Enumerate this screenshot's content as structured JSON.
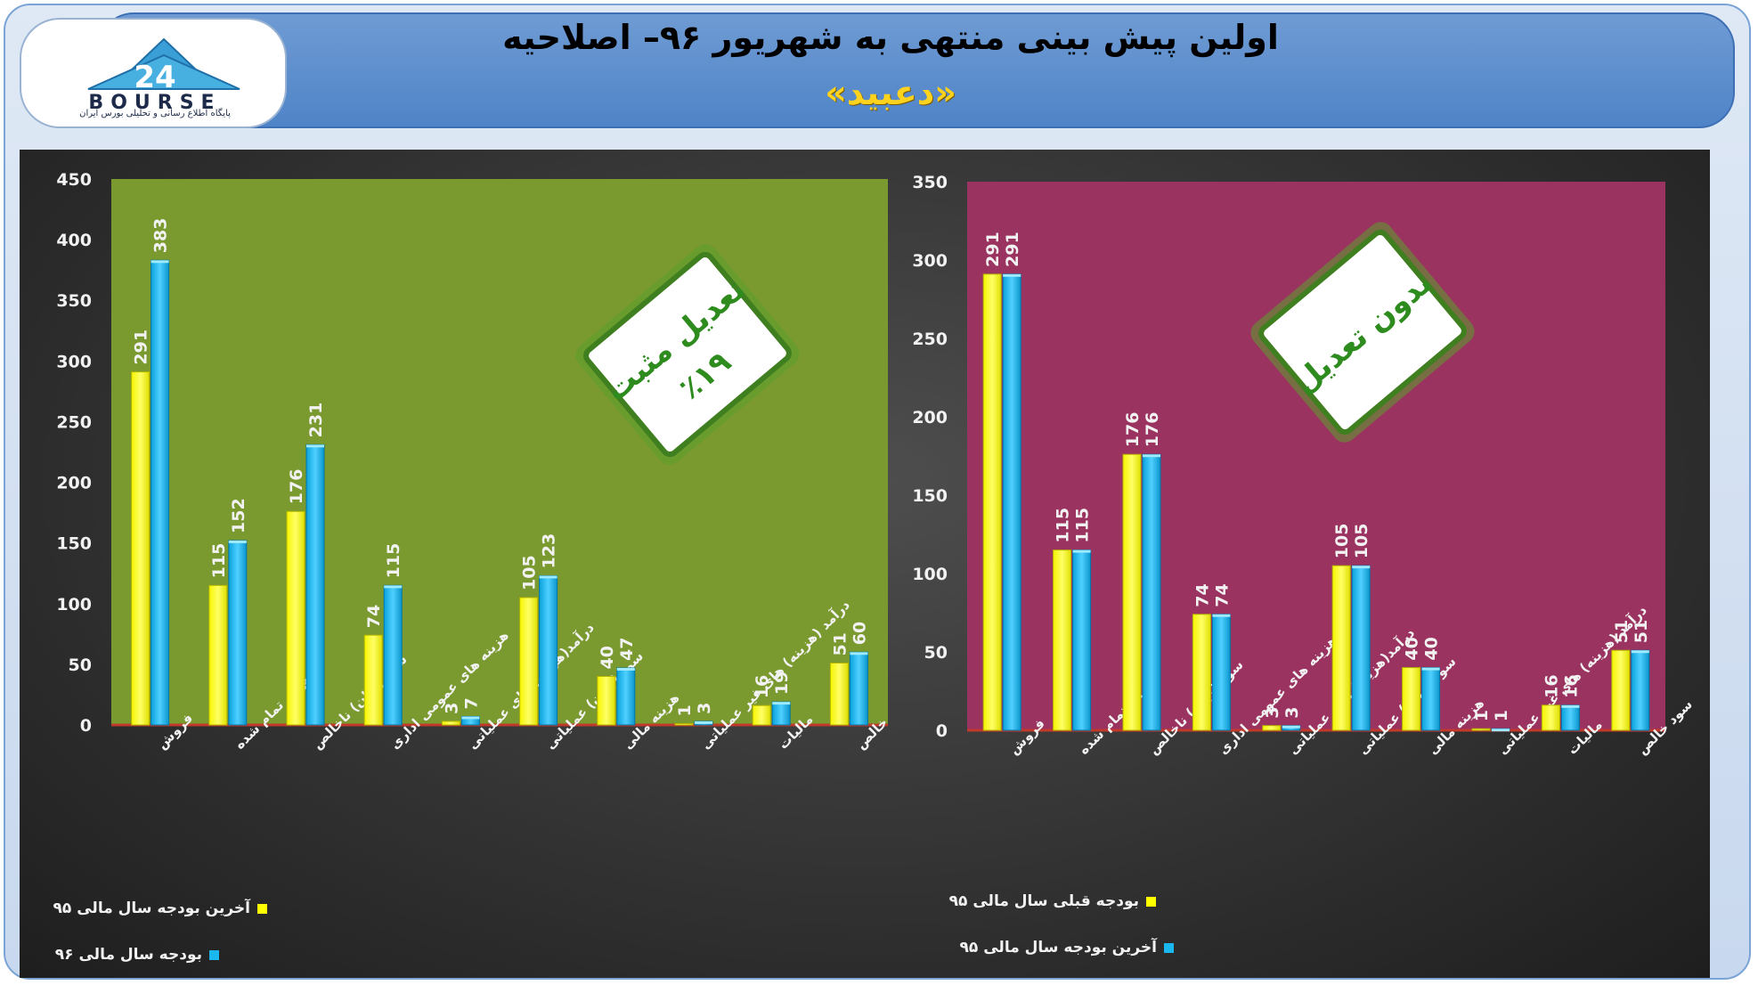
{
  "header": {
    "title": "اولین پیش بینی منتهی به شهریور ۹۶– اصلاحیه",
    "subtitle": "«دعبید»",
    "logo_text": "BOURSE",
    "logo_number": "24",
    "logo_subtitle": "پایگاه اطلاع رسانی و تحلیلی بورس ایران"
  },
  "chart_data": [
    {
      "type": "bar",
      "position": "left",
      "background": "#7a9a30",
      "categories": [
        "فروش",
        "بهای تمام شده",
        "سود (زیان) ناخالص",
        "هزینه های عمومی اداری",
        "درآمد(هزینه) های عملیاتی",
        "سود (زیان) عملیاتی",
        "هزینه مالی",
        "درآمد (هزینه) های غیر عملیاتی",
        "مالیات",
        "سود خالص"
      ],
      "series": [
        {
          "name": "آخرین بودجه سال مالی ۹۵",
          "color": "#ffff00",
          "values": [
            291,
            115,
            176,
            74,
            3,
            105,
            40,
            1,
            16,
            51
          ]
        },
        {
          "name": "بودجه سال مالی ۹۶",
          "color": "#1ab8f0",
          "values": [
            383,
            152,
            231,
            115,
            7,
            123,
            47,
            3,
            19,
            60
          ]
        }
      ],
      "ylim": [
        0,
        450
      ],
      "yticks": [
        0,
        50,
        100,
        150,
        200,
        250,
        300,
        350,
        400,
        450
      ],
      "badge": {
        "line1": "تعدیل مثبت",
        "line2": "٪۱۹"
      }
    },
    {
      "type": "bar",
      "position": "right",
      "background": "#9b3360",
      "categories": [
        "فروش",
        "بهای تمام شده",
        "سود (زیان) ناخالص",
        "هزینه های عمومی اداری",
        "درآمد(هزینه) های عملیاتی",
        "سود (زیان) عملیاتی",
        "هزینه مالی",
        "درآمد (هزینه) های غیر عملیاتی",
        "مالیات",
        "سود خالص"
      ],
      "series": [
        {
          "name": "بودجه قبلی سال مالی ۹۵",
          "color": "#ffff00",
          "values": [
            291,
            115,
            176,
            74,
            3,
            105,
            40,
            1,
            16,
            51
          ]
        },
        {
          "name": "آخرین بودجه سال مالی ۹۵",
          "color": "#1ab8f0",
          "values": [
            291,
            115,
            176,
            74,
            3,
            105,
            40,
            1,
            16,
            51
          ]
        }
      ],
      "ylim": [
        0,
        350
      ],
      "yticks": [
        0,
        50,
        100,
        150,
        200,
        250,
        300,
        350
      ],
      "badge": {
        "line1": "بدون تعدیل",
        "line2": ""
      }
    }
  ]
}
